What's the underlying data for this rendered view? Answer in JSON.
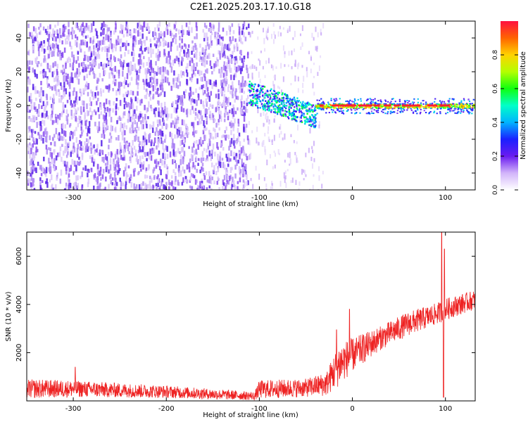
{
  "title": "C2E1.2025.203.17.10.G18",
  "colors": {
    "snr_line": "#ee2222",
    "scatter_purple": "#8c50f0",
    "scatter_dark": "#4a1ee6",
    "scatter_light": "#d2b4fa",
    "axes": "#000000"
  },
  "chart_data": [
    {
      "type": "heatmap",
      "title": "C2E1.2025.203.17.10.G18",
      "xlabel": "Height of straight line (km)",
      "ylabel": "Frequency (Hz)",
      "xlim": [
        -350,
        132
      ],
      "ylim": [
        -50,
        50
      ],
      "xticks": [
        -300,
        -200,
        -100,
        0,
        100
      ],
      "yticks": [
        -40,
        -20,
        0,
        20,
        40
      ],
      "colorbar": {
        "label": "Normalized spectral amplitude",
        "range": [
          0,
          1
        ],
        "ticks": [
          "0.0",
          "0.2",
          "0.4",
          "0.6",
          "0.8"
        ],
        "colormap": "rainbow"
      },
      "features": [
        {
          "x_range": [
            -350,
            -112
          ],
          "frequency_range": [
            -50,
            50
          ],
          "amplitude": [
            0.05,
            0.25
          ]
        },
        {
          "x_range": [
            -112,
            -40
          ],
          "frequency_center": [
            8,
            -6
          ],
          "amplitude": [
            0.3,
            0.55
          ]
        },
        {
          "x_range": [
            -40,
            132
          ],
          "frequency_center": 0,
          "amplitude": [
            0.6,
            1.0
          ]
        }
      ],
      "grid": false
    },
    {
      "type": "line",
      "xlabel": "Height of straight line (km)",
      "ylabel": "SNR (10 * v/v)",
      "xlim": [
        -350,
        132
      ],
      "ylim": [
        0,
        7000
      ],
      "xticks": [
        -300,
        -200,
        -100,
        0,
        100
      ],
      "yticks": [
        2000,
        4000,
        6000
      ],
      "trend": [
        {
          "x": -350,
          "base": 500,
          "amp": 400
        },
        {
          "x": -300,
          "base": 500,
          "amp": 350
        },
        {
          "x": -250,
          "base": 440,
          "amp": 300
        },
        {
          "x": -200,
          "base": 380,
          "amp": 260
        },
        {
          "x": -150,
          "base": 280,
          "amp": 220
        },
        {
          "x": -105,
          "base": 200,
          "amp": 170
        },
        {
          "x": -100,
          "base": 480,
          "amp": 380
        },
        {
          "x": -50,
          "base": 540,
          "amp": 380
        },
        {
          "x": -28,
          "base": 700,
          "amp": 500
        },
        {
          "x": -15,
          "base": 1500,
          "amp": 900
        },
        {
          "x": 0,
          "base": 1900,
          "amp": 700
        },
        {
          "x": 30,
          "base": 2600,
          "amp": 500
        },
        {
          "x": 60,
          "base": 3200,
          "amp": 500
        },
        {
          "x": 90,
          "base": 3600,
          "amp": 450
        },
        {
          "x": 100,
          "base": 3800,
          "amp": 450
        },
        {
          "x": 132,
          "base": 4200,
          "amp": 400
        }
      ],
      "spikes": [
        {
          "x": -298,
          "y": 1400
        },
        {
          "x": -17,
          "y": 2950
        },
        {
          "x": -3,
          "y": 3800
        },
        {
          "x": 96,
          "y": 7000
        },
        {
          "x": 99,
          "y": 6300
        },
        {
          "x": 98,
          "y": 150
        }
      ],
      "grid": false
    }
  ]
}
